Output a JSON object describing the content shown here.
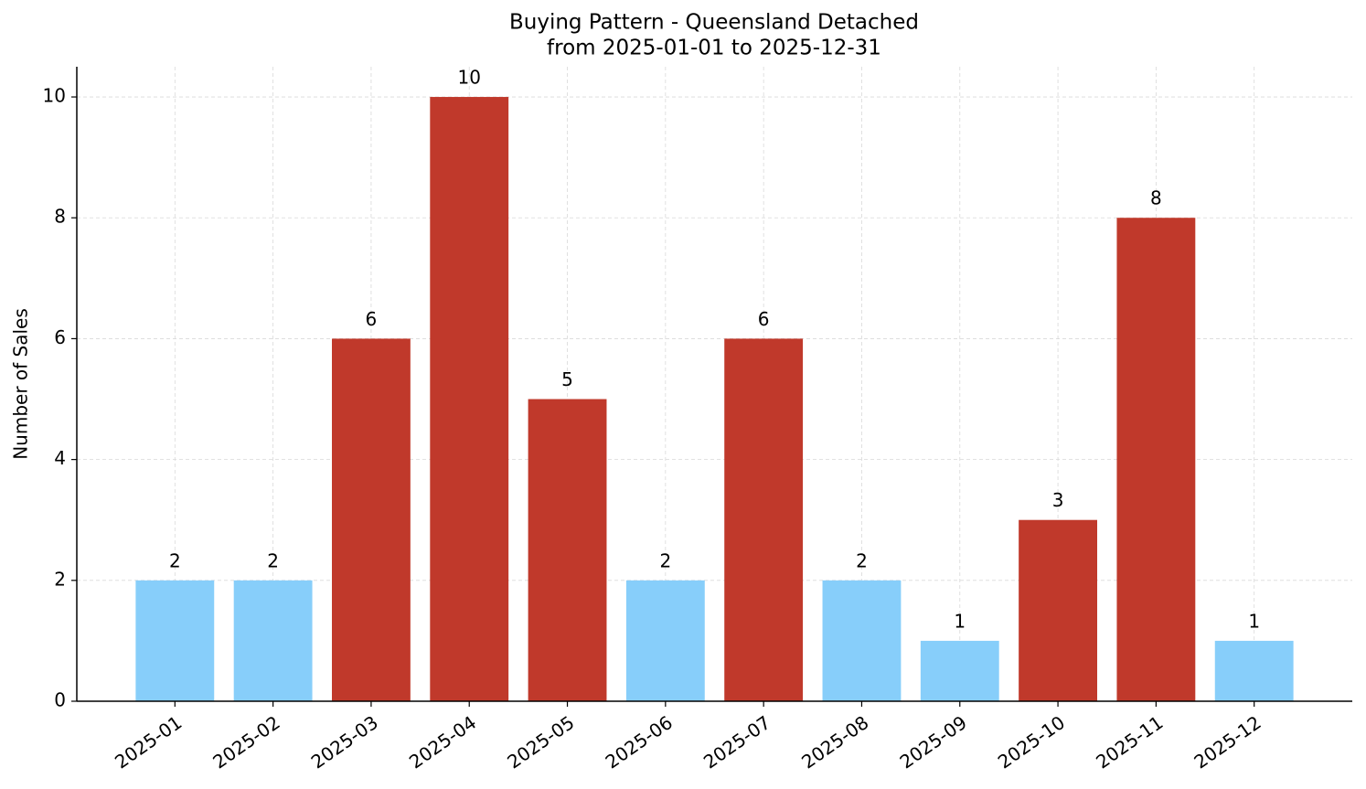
{
  "chart_data": {
    "type": "bar",
    "title": "Buying Pattern - Queensland Detached",
    "subtitle": "from 2025-01-01 to 2025-12-31",
    "y_label": "Number of Sales",
    "categories": [
      "2025-01",
      "2025-02",
      "2025-03",
      "2025-04",
      "2025-05",
      "2025-06",
      "2025-07",
      "2025-08",
      "2025-09",
      "2025-10",
      "2025-11",
      "2025-12"
    ],
    "values": [
      2,
      2,
      6,
      10,
      5,
      2,
      6,
      2,
      1,
      3,
      8,
      1
    ],
    "colors": [
      "#87cefa",
      "#87cefa",
      "#c0392b",
      "#c0392b",
      "#c0392b",
      "#87cefa",
      "#c0392b",
      "#87cefa",
      "#87cefa",
      "#c0392b",
      "#c0392b",
      "#87cefa"
    ],
    "ylim": [
      0,
      10.5
    ],
    "yticks": [
      0,
      2,
      4,
      6,
      8,
      10
    ],
    "grid": true
  }
}
